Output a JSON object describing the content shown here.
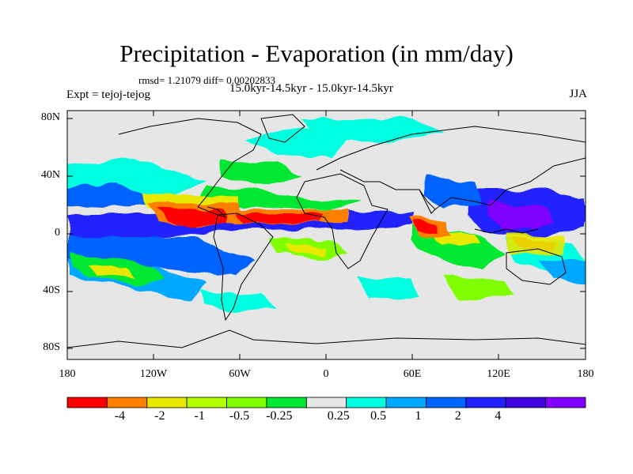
{
  "title": "Precipitation - Evaporation (in mm/day)",
  "stats": "rmsd= 1.21079 diff= 0.00202833",
  "period": "15.0kyr-14.5kyr - 15.0kyr-14.5kyr",
  "experiment": "Expt = tejoj-tejog",
  "season": "JJA",
  "lat_ticks": [
    "80N",
    "40N",
    "0",
    "40S",
    "80S"
  ],
  "lon_ticks": [
    "180",
    "120W",
    "60W",
    "0",
    "60E",
    "120E",
    "180"
  ],
  "colorbar": {
    "colors": [
      "#ff0000",
      "#ff8000",
      "#e8e800",
      "#b4ff00",
      "#80ff00",
      "#00e830",
      "#e6e6e6",
      "#00ffe0",
      "#00a8ff",
      "#0064ff",
      "#2020ff",
      "#4000e0",
      "#8000ff"
    ],
    "labels": [
      "-4",
      "-2",
      "-1",
      "-0.5",
      "-0.25",
      "0.25",
      "0.5",
      "1",
      "2",
      "4"
    ]
  },
  "background_color": "#e6e6e6"
}
